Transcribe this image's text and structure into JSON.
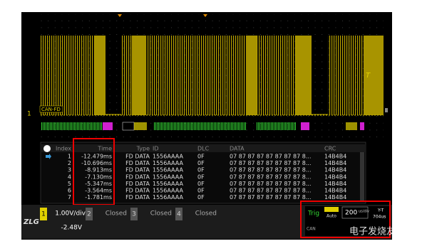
{
  "screen": {
    "decode_tag": "CAN-FD",
    "channel_marker": "1",
    "trigger_label": "T"
  },
  "table": {
    "columns": [
      "Index",
      "Time",
      "Type",
      "ID",
      "DLC",
      "DATA",
      "CRC"
    ],
    "rows": [
      [
        "1",
        "-12.479ms",
        "FD DATA",
        "1556AAAA",
        "0F",
        "07 87 87 87 87 87 87 87 8...",
        "14B4B4"
      ],
      [
        "2",
        "-10.696ms",
        "FD DATA",
        "1556AAAA",
        "0F",
        "07 87 87 87 87 87 87 87 8...",
        "14B4B4"
      ],
      [
        "3",
        "-8.913ms",
        "FD DATA",
        "1556AAAA",
        "0F",
        "07 87 87 87 87 87 87 87 8...",
        "14B4B4"
      ],
      [
        "4",
        "-7.130ms",
        "FD DATA",
        "1556AAAA",
        "0F",
        "07 87 87 87 87 87 87 87 8...",
        "14B4B4"
      ],
      [
        "5",
        "-5.347ms",
        "FD DATA",
        "1556AAAA",
        "0F",
        "07 87 87 87 87 87 87 87 8...",
        "14B4B4"
      ],
      [
        "6",
        "-3.564ms",
        "FD DATA",
        "1556AAAA",
        "0F",
        "07 87 87 87 87 87 87 87 8...",
        "14B4B4"
      ],
      [
        "7",
        "-1.781ms",
        "FD DATA",
        "1556AAAA",
        "0F",
        "07 87 87 87 87 87 87 87 8...",
        "14B4B4"
      ]
    ]
  },
  "footer": {
    "logo": "ZLG",
    "ch1": {
      "number": "1",
      "scale": "1.00V/div",
      "offset": "-2.48V"
    },
    "channels": [
      {
        "number": "2",
        "state": "Closed"
      },
      {
        "number": "3",
        "state": "Closed"
      },
      {
        "number": "4",
        "state": "Closed"
      }
    ],
    "trig": "Trig",
    "trig_mode": "Auto",
    "trig_type": "CAN",
    "timebase": "200",
    "timebase_unit": "us/div",
    "mode": "Y-T",
    "delay": "704us",
    "watermark": "电子发烧友"
  }
}
